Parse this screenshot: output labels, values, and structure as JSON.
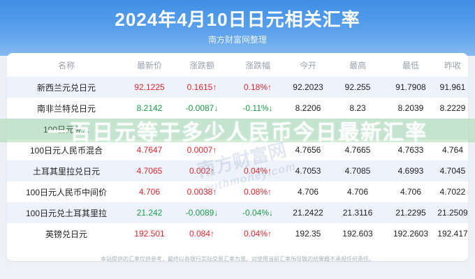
{
  "header": {
    "title": "2024年4月10日日元相关汇率",
    "subtitle": "南方财富网整理"
  },
  "table": {
    "columns": [
      "名称",
      "最新价",
      "涨跌额",
      "涨跌幅",
      "今开",
      "最高",
      "最低",
      "昨收"
    ],
    "rows": [
      {
        "name": "新西兰元兑日元",
        "latest": "92.1225",
        "change": "0.1615↑",
        "pct": "0.18%↑",
        "open": "92.2023",
        "high": "92.255",
        "low": "91.7908",
        "prev": "91.961",
        "dir": "up"
      },
      {
        "name": "南非兰特兑日元",
        "latest": "8.2142",
        "change": "-0.0087↓",
        "pct": "-0.11%↓",
        "open": "8.2206",
        "high": "8.23",
        "low": "8.2039",
        "prev": "8.2229",
        "dir": "down"
      },
      {
        "name": "100日元兑...",
        "latest": "",
        "change": "",
        "pct": "",
        "open": "",
        "high": "",
        "low": "",
        "prev": "",
        "dir": "up"
      },
      {
        "name": "100日元人民币混合",
        "latest": "4.7647",
        "change": "0.0007↑",
        "pct": "",
        "open": "4.7656",
        "high": "4.7665",
        "low": "4.7633",
        "prev": "4.764",
        "dir": "up"
      },
      {
        "name": "土耳其里拉兑日元",
        "latest": "4.7065",
        "change": "0.002↑",
        "pct": "0.04%↑",
        "open": "4.7053",
        "high": "4.7085",
        "low": "4.6993",
        "prev": "4.7045",
        "dir": "up"
      },
      {
        "name": "100日元人民币中间价",
        "latest": "4.706",
        "change": "0.0038↑",
        "pct": "0.08%↑",
        "open": "4.706",
        "high": "4.706",
        "low": "4.706",
        "prev": "4.7022",
        "dir": "up"
      },
      {
        "name": "100日元兑土耳其里拉",
        "latest": "21.242",
        "change": "-0.0089↓",
        "pct": "-0.04%↓",
        "open": "21.2422",
        "high": "21.3116",
        "low": "21.2295",
        "prev": "21.2509",
        "dir": "down"
      },
      {
        "name": "英镑兑日元",
        "latest": "192.501",
        "change": "0.084↑",
        "pct": "0.04%↑",
        "open": "192.35",
        "high": "192.603",
        "low": "192.2603",
        "prev": "192.417",
        "dir": "up"
      }
    ]
  },
  "overlay": {
    "text": "一百日元等于多少人民币今日最新汇率"
  },
  "watermark": {
    "name": "南方财富网",
    "domain": "southmoney.com"
  },
  "footer": {
    "disclaimer": "本站提供的汇率仅供参考，最终以各银行实际交易汇率为准。对使用当前汇率所导致的结果概不承担任何责任。"
  },
  "colors": {
    "header_bg": "#3f8ee6",
    "up": "#e0262d",
    "down": "#1a9a4a",
    "row_alt": "#eef3fb"
  }
}
